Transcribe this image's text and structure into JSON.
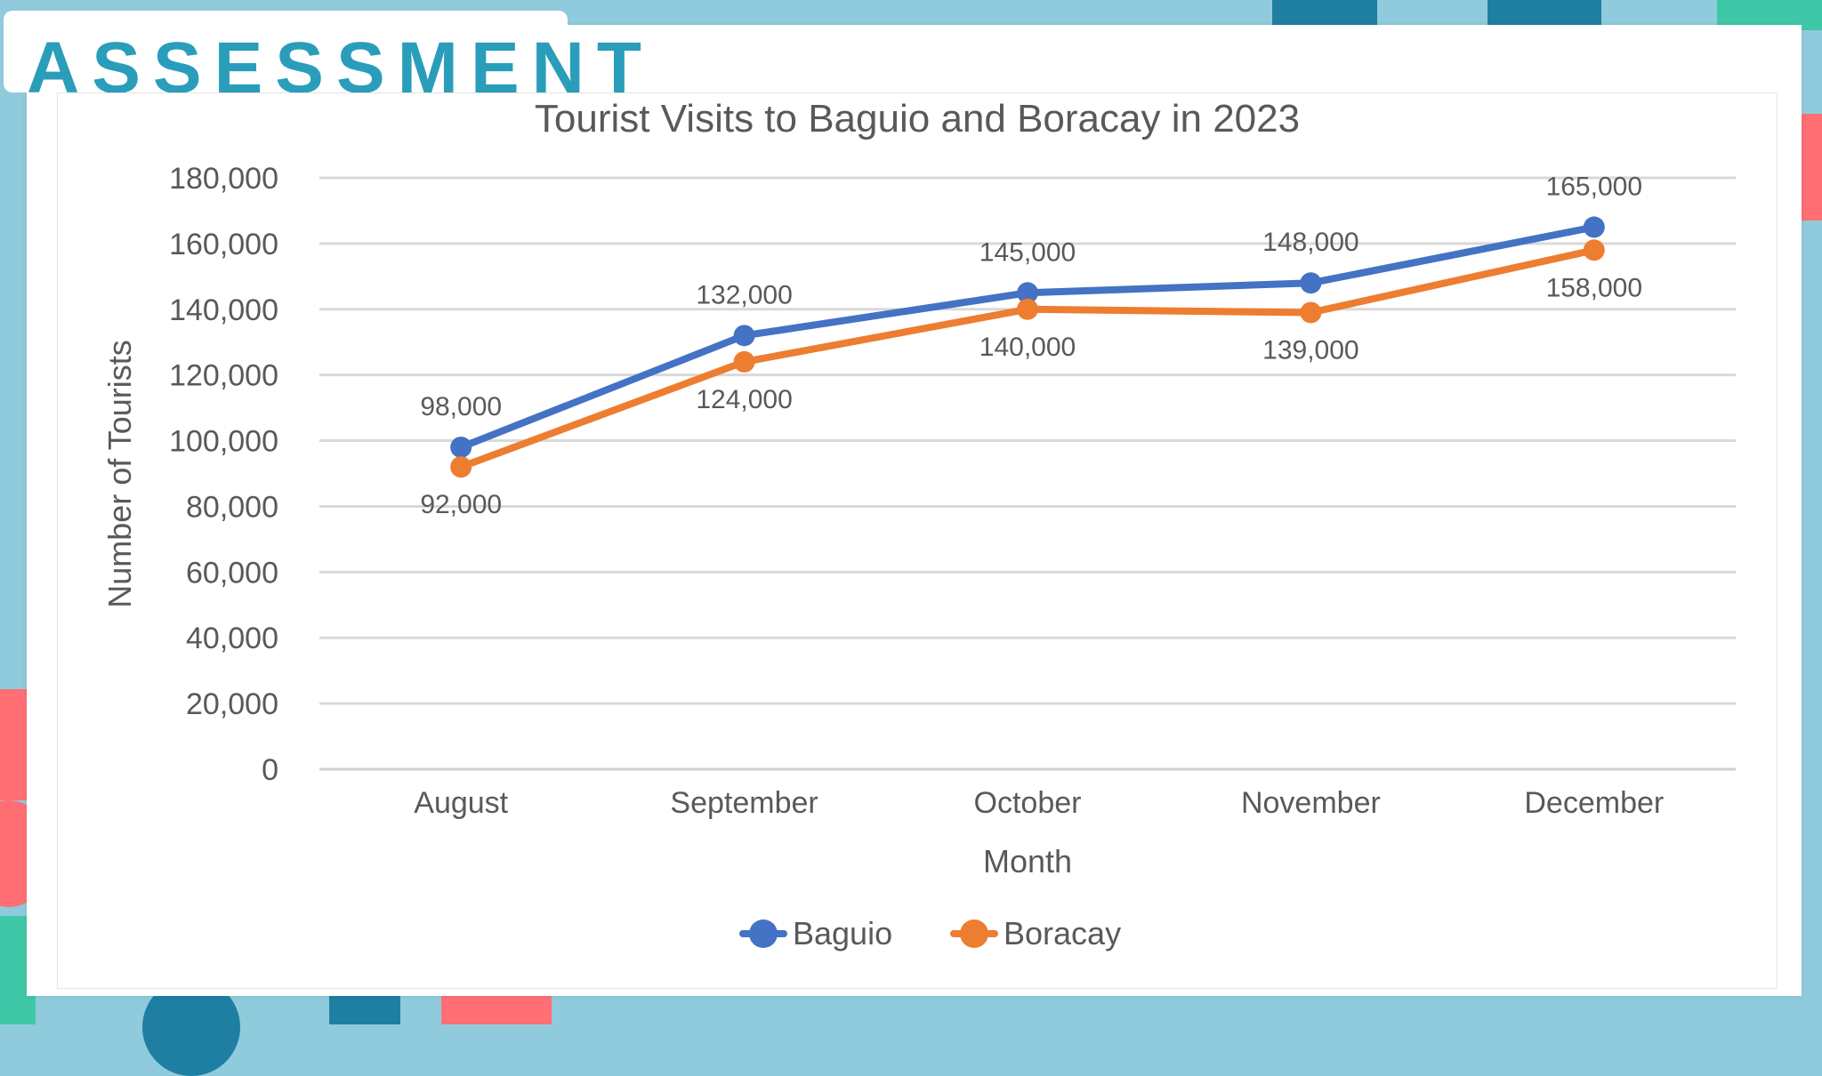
{
  "slide": {
    "heading": "ASSESSMENT"
  },
  "colors": {
    "background": "#8fcbdc",
    "heading": "#2a9dbb",
    "baguio": "#4472c4",
    "boracay": "#ed7d31",
    "gridline": "#d9d9d9",
    "text": "#595959"
  },
  "chart_data": {
    "type": "line",
    "title": "Tourist Visits to Baguio and Boracay in 2023",
    "xlabel": "Month",
    "ylabel": "Number of Tourists",
    "categories": [
      "August",
      "September",
      "October",
      "November",
      "December"
    ],
    "y_ticks": [
      "0",
      "20,000",
      "40,000",
      "60,000",
      "80,000",
      "100,000",
      "120,000",
      "140,000",
      "160,000",
      "180,000"
    ],
    "ylim": [
      0,
      180000
    ],
    "grid": true,
    "legend_position": "bottom",
    "series": [
      {
        "name": "Baguio",
        "values": [
          98000,
          132000,
          145000,
          148000,
          165000
        ],
        "labels": [
          "98,000",
          "132,000",
          "145,000",
          "148,000",
          "165,000"
        ],
        "color": "#4472c4"
      },
      {
        "name": "Boracay",
        "values": [
          92000,
          124000,
          140000,
          139000,
          158000
        ],
        "labels": [
          "92,000",
          "124,000",
          "140,000",
          "139,000",
          "158,000"
        ],
        "color": "#ed7d31"
      }
    ]
  }
}
